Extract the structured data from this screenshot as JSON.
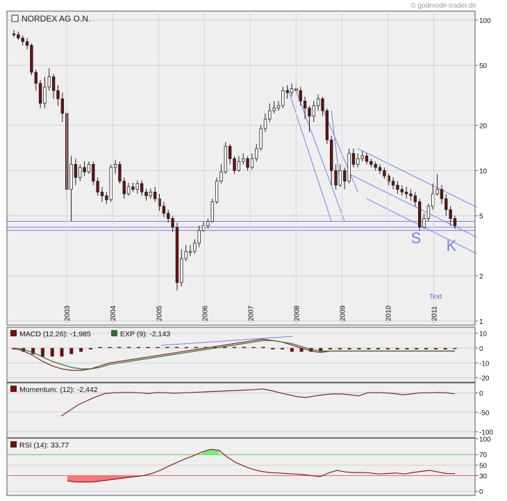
{
  "copyright": "© godmode-trader.de",
  "colors": {
    "panel_bg": "#efefef",
    "frame": "#555555",
    "candle": "#6e0f0f",
    "trend": "#7b7bf0",
    "signal": "#2f6f2f",
    "rsi_high_fill": "#66ee66",
    "rsi_low_fill": "#ff6666"
  },
  "chart_data": [
    {
      "type": "candlestick",
      "title": "NORDEX AG O.N.",
      "scale": "log",
      "ylim": [
        1,
        110
      ],
      "y_ticks": [
        100,
        50,
        20,
        10,
        5,
        2,
        1
      ],
      "x_year_labels": [
        "2003",
        "2004",
        "2005",
        "2006",
        "2007",
        "2008",
        "2009",
        "2010",
        "2011"
      ],
      "annotations": [
        "S",
        "K",
        "Text"
      ],
      "series": [
        {
          "values": [
            [
              0,
              81,
              80,
              86,
              77
            ],
            [
              1,
              80,
              76,
              84,
              74
            ],
            [
              2,
              76,
              72,
              79,
              68
            ],
            [
              3,
              72,
              68,
              76,
              64
            ],
            [
              4,
              68,
              45,
              70,
              43
            ],
            [
              5,
              45,
              38,
              47,
              34
            ],
            [
              6,
              38,
              28,
              40,
              26
            ],
            [
              7,
              28,
              36,
              42,
              26
            ],
            [
              8,
              36,
              42,
              48,
              34
            ],
            [
              9,
              42,
              34,
              44,
              30
            ],
            [
              10,
              34,
              30,
              37,
              27
            ],
            [
              11,
              30,
              24,
              33,
              21
            ],
            [
              12,
              24,
              7.5,
              25,
              6.5
            ],
            [
              13,
              7.5,
              11,
              12.5,
              4.6
            ],
            [
              14,
              11,
              9,
              12,
              8
            ],
            [
              15,
              9,
              10.5,
              11,
              8.5
            ],
            [
              16,
              10.5,
              9.8,
              11.5,
              9.2
            ],
            [
              17,
              9.8,
              11,
              11.5,
              9.5
            ],
            [
              18,
              11,
              8.5,
              11.5,
              8
            ],
            [
              19,
              8.5,
              7.2,
              9,
              6.8
            ],
            [
              20,
              7.2,
              6.8,
              7.8,
              6.2
            ],
            [
              21,
              6.8,
              6.4,
              7.2,
              6
            ],
            [
              22,
              6.4,
              10.5,
              11,
              6.2
            ],
            [
              23,
              10.5,
              11,
              11.8,
              9.5
            ],
            [
              24,
              11,
              8.5,
              11.5,
              8.2
            ],
            [
              25,
              8.5,
              7,
              9,
              6.5
            ],
            [
              26,
              7,
              7.8,
              8.3,
              6.8
            ],
            [
              27,
              7.8,
              7.5,
              8.3,
              7.2
            ],
            [
              28,
              7.5,
              8.2,
              8.6,
              7
            ],
            [
              29,
              8.2,
              7.2,
              8.6,
              6.8
            ],
            [
              30,
              7.2,
              6.8,
              7.6,
              6.3
            ],
            [
              31,
              6.8,
              7.2,
              7.6,
              6.5
            ],
            [
              32,
              7.2,
              6.5,
              7.8,
              6.2
            ],
            [
              33,
              6.5,
              5.8,
              7,
              5.4
            ],
            [
              34,
              5.8,
              5.2,
              6.2,
              4.9
            ],
            [
              35,
              5.2,
              4.8,
              5.5,
              4.5
            ],
            [
              36,
              4.8,
              4.2,
              5,
              3.9
            ],
            [
              37,
              4.2,
              1.8,
              4.5,
              1.6
            ],
            [
              38,
              1.8,
              2.6,
              3,
              1.7
            ],
            [
              39,
              2.6,
              2.9,
              3.2,
              2.5
            ],
            [
              40,
              2.9,
              2.9,
              3.2,
              2.7
            ],
            [
              41,
              2.9,
              3.3,
              3.5,
              2.8
            ],
            [
              42,
              3.3,
              4,
              4.3,
              3.1
            ],
            [
              43,
              4,
              4.3,
              4.6,
              3.9
            ],
            [
              44,
              4.3,
              4.6,
              4.8,
              4.1
            ],
            [
              45,
              4.6,
              6.2,
              6.5,
              4.5
            ],
            [
              46,
              6.2,
              8.5,
              9,
              6
            ],
            [
              47,
              8.5,
              9.8,
              11,
              8.2
            ],
            [
              48,
              9.8,
              14.5,
              15.5,
              9.5
            ],
            [
              49,
              14.5,
              12,
              15,
              11
            ],
            [
              50,
              12,
              10,
              12.5,
              9.5
            ],
            [
              51,
              10,
              11.5,
              12.5,
              9.8
            ],
            [
              52,
              11.5,
              12,
              13,
              11
            ],
            [
              53,
              12,
              10.5,
              12.5,
              10
            ],
            [
              54,
              10.5,
              12,
              13,
              10.2
            ],
            [
              55,
              12,
              14,
              15,
              11.5
            ],
            [
              56,
              14,
              19,
              20,
              13.5
            ],
            [
              57,
              19,
              22,
              24,
              18
            ],
            [
              58,
              22,
              25,
              28,
              21
            ],
            [
              59,
              25,
              26,
              29,
              24
            ],
            [
              60,
              26,
              27,
              29,
              25
            ],
            [
              61,
              27,
              34,
              36,
              26
            ],
            [
              62,
              34,
              33,
              37,
              30
            ],
            [
              63,
              33,
              35,
              38,
              31
            ],
            [
              64,
              35,
              34,
              39,
              32
            ],
            [
              65,
              34,
              29,
              36,
              27
            ],
            [
              66,
              29,
              26,
              31,
              22
            ],
            [
              67,
              26,
              23,
              27,
              18
            ],
            [
              68,
              23,
              27,
              29,
              21
            ],
            [
              69,
              27,
              30,
              32,
              25
            ],
            [
              70,
              30,
              25,
              31,
              23
            ],
            [
              71,
              25,
              16,
              26,
              15
            ],
            [
              72,
              16,
              10,
              17,
              8
            ],
            [
              73,
              10,
              8,
              11,
              7.5
            ],
            [
              74,
              8,
              10,
              11,
              7.8
            ],
            [
              75,
              10,
              8.5,
              10.5,
              7.5
            ],
            [
              76,
              8.5,
              13,
              14,
              8.2
            ],
            [
              77,
              13,
              11,
              14,
              10.5
            ],
            [
              78,
              11,
              12,
              13,
              10.5
            ],
            [
              79,
              12,
              12.5,
              13.5,
              11.5
            ],
            [
              80,
              12.5,
              11.5,
              13,
              11
            ],
            [
              81,
              11.5,
              11,
              12,
              10.5
            ],
            [
              82,
              11,
              10.5,
              11.5,
              10
            ],
            [
              83,
              10.5,
              10,
              11,
              9.5
            ],
            [
              84,
              10,
              9.2,
              10.5,
              8.8
            ],
            [
              85,
              9.2,
              8.5,
              9.5,
              8
            ],
            [
              86,
              8.5,
              8,
              9,
              7.5
            ],
            [
              87,
              8,
              7.5,
              8.5,
              7
            ],
            [
              88,
              7.5,
              7.2,
              8,
              6.8
            ],
            [
              89,
              7.2,
              7,
              7.8,
              6.5
            ],
            [
              90,
              7,
              6.8,
              7.5,
              6.3
            ],
            [
              91,
              6.8,
              6.2,
              7.2,
              5.8
            ],
            [
              92,
              6.2,
              4.2,
              6.5,
              4
            ],
            [
              93,
              4.2,
              4.8,
              5.2,
              4.1
            ],
            [
              94,
              4.8,
              5.8,
              6,
              4.6
            ],
            [
              95,
              5.8,
              7,
              8.2,
              5.5
            ],
            [
              96,
              7,
              7.5,
              9.5,
              6.8
            ],
            [
              97,
              7.5,
              6.5,
              8,
              6
            ],
            [
              98,
              6.5,
              5.5,
              7,
              5
            ],
            [
              99,
              5.5,
              4.8,
              5.8,
              4.3
            ],
            [
              100,
              4.8,
              4.3,
              5,
              4.1
            ]
          ]
        }
      ]
    },
    {
      "type": "line",
      "title": "MACD (12,26): -1,985",
      "signal_label": "EXP (9): -2,143",
      "ylim": [
        -22,
        13
      ],
      "y_ticks": [
        10,
        0,
        -10,
        -20
      ],
      "series": [
        {
          "name": "MACD (12,26)",
          "values": [
            0,
            -2,
            -5,
            -9,
            -12,
            -14,
            -15,
            -15,
            -14,
            -12,
            -10,
            -9,
            -8,
            -7,
            -6,
            -5,
            -4,
            -3,
            -2,
            -1,
            0,
            1,
            2,
            3,
            4,
            5,
            6,
            5,
            4,
            2,
            0,
            -2,
            -3,
            -2,
            -2,
            -2,
            -2,
            -2,
            -2,
            -2,
            -2,
            -2,
            -2,
            -2,
            -2,
            -2,
            -1.99
          ]
        },
        {
          "name": "EXP (9)",
          "values": [
            0,
            -1,
            -3,
            -6,
            -9,
            -11,
            -13,
            -14,
            -14,
            -13,
            -11,
            -10,
            -9,
            -8,
            -7,
            -6,
            -5,
            -4,
            -3,
            -2,
            -1,
            0,
            1,
            2,
            3,
            4,
            5,
            5,
            4,
            3,
            1,
            -1,
            -2,
            -2,
            -2,
            -2,
            -2,
            -2,
            -2,
            -2,
            -2,
            -2,
            -2,
            -2,
            -2,
            -2,
            -2.14
          ]
        }
      ]
    },
    {
      "type": "line",
      "title": "Momentum: (12): -2,442",
      "ylim": [
        -112,
        22
      ],
      "y_ticks": [
        0,
        -50,
        -100
      ],
      "series": [
        {
          "name": "Momentum (12)",
          "values": [
            -60,
            -45,
            -30,
            -20,
            -10,
            -2,
            0,
            1,
            1,
            0,
            -2,
            1,
            0,
            -1,
            0,
            1,
            2,
            3,
            4,
            5,
            6,
            7,
            8,
            10,
            6,
            0,
            -5,
            -10,
            -12,
            -8,
            -5,
            -3,
            -3,
            -5,
            -8,
            0,
            1,
            0,
            -2,
            -5,
            -3,
            0,
            0,
            1,
            0,
            -2.44
          ]
        }
      ]
    },
    {
      "type": "line",
      "title": "RSI (14): 33,77",
      "ylim": [
        -5,
        98
      ],
      "y_ticks": [
        100,
        70,
        50,
        30,
        0
      ],
      "overbought": 70,
      "oversold": 30,
      "series": [
        {
          "name": "RSI (14)",
          "values": [
            20,
            18,
            18,
            18,
            20,
            22,
            24,
            26,
            28,
            30,
            34,
            40,
            48,
            55,
            62,
            68,
            75,
            80,
            78,
            65,
            55,
            48,
            42,
            38,
            36,
            35,
            34,
            33,
            32,
            30,
            28,
            35,
            40,
            37,
            36,
            36,
            35,
            33,
            34,
            35,
            33,
            36,
            38,
            40,
            37,
            34,
            33.77
          ]
        }
      ]
    }
  ]
}
